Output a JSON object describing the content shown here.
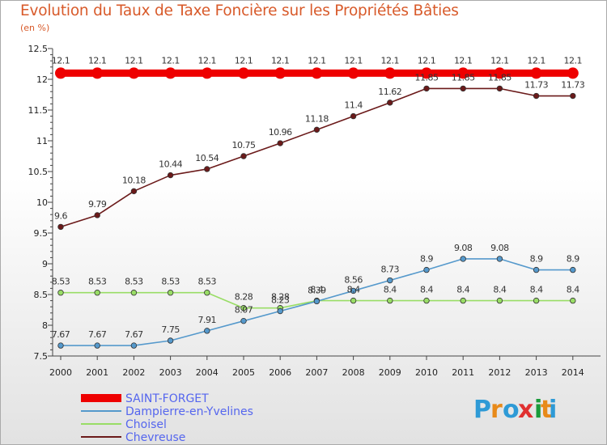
{
  "chart_data": {
    "type": "line",
    "title": "Evolution du Taux de Taxe Foncière sur les Propriétés Bâties",
    "unit_label": "(en %)",
    "xlabel": "",
    "ylabel": "",
    "ylim": [
      7.5,
      12.5
    ],
    "yticks": [
      "7.5",
      "8",
      "8.5",
      "9",
      "9.5",
      "10",
      "10.5",
      "11",
      "11.5",
      "12",
      "12.5"
    ],
    "x": [
      "2000",
      "2001",
      "2002",
      "2003",
      "2004",
      "2005",
      "2006",
      "2007",
      "2008",
      "2009",
      "2010",
      "2011",
      "2012",
      "2013",
      "2014"
    ],
    "series": [
      {
        "name": "SAINT-FORGET",
        "color": "#ee0000",
        "values": [
          12.1,
          12.1,
          12.1,
          12.1,
          12.1,
          12.1,
          12.1,
          12.1,
          12.1,
          12.1,
          12.1,
          12.1,
          12.1,
          12.1,
          12.1
        ],
        "labels": [
          "12.1",
          "12.1",
          "12.1",
          "12.1",
          "12.1",
          "12.1",
          "12.1",
          "12.1",
          "12.1",
          "12.1",
          "12.1",
          "12.1",
          "12.1",
          "12.1",
          "12.1"
        ]
      },
      {
        "name": "Dampierre-en-Yvelines",
        "color": "#5599cc",
        "values": [
          7.67,
          7.67,
          7.67,
          7.75,
          7.91,
          8.07,
          8.23,
          8.39,
          8.56,
          8.73,
          8.9,
          9.08,
          9.08,
          8.9,
          8.9
        ],
        "labels": [
          "7.67",
          "7.67",
          "7.67",
          "7.75",
          "7.91",
          "8.07",
          "8.23",
          "8.39",
          "8.56",
          "8.73",
          "8.9",
          "9.08",
          "9.08",
          "8.9",
          "8.9"
        ]
      },
      {
        "name": "Choisel",
        "color": "#99dd66",
        "values": [
          8.53,
          8.53,
          8.53,
          8.53,
          8.53,
          8.28,
          8.28,
          8.4,
          8.4,
          8.4,
          8.4,
          8.4,
          8.4,
          8.4,
          8.4
        ],
        "labels": [
          "8.53",
          "8.53",
          "8.53",
          "8.53",
          "8.53",
          "8.28",
          "8.28",
          "8.4",
          "8.4",
          "8.4",
          "8.4",
          "8.4",
          "8.4",
          "8.4",
          "8.4"
        ]
      },
      {
        "name": "Chevreuse",
        "color": "#6b1a1a",
        "values": [
          9.6,
          9.79,
          10.18,
          10.44,
          10.54,
          10.75,
          10.96,
          11.18,
          11.4,
          11.62,
          11.85,
          11.85,
          11.85,
          11.73,
          11.73
        ],
        "labels": [
          "9.6",
          "9.79",
          "10.18",
          "10.44",
          "10.54",
          "10.75",
          "10.96",
          "11.18",
          "11.4",
          "11.62",
          "11.85",
          "11.85",
          "11.85",
          "11.73",
          "11.73"
        ]
      }
    ],
    "legend_position": "bottom-left"
  },
  "logo": {
    "letters": [
      "P",
      "r",
      "o",
      "x",
      "i",
      "t",
      "i"
    ]
  }
}
